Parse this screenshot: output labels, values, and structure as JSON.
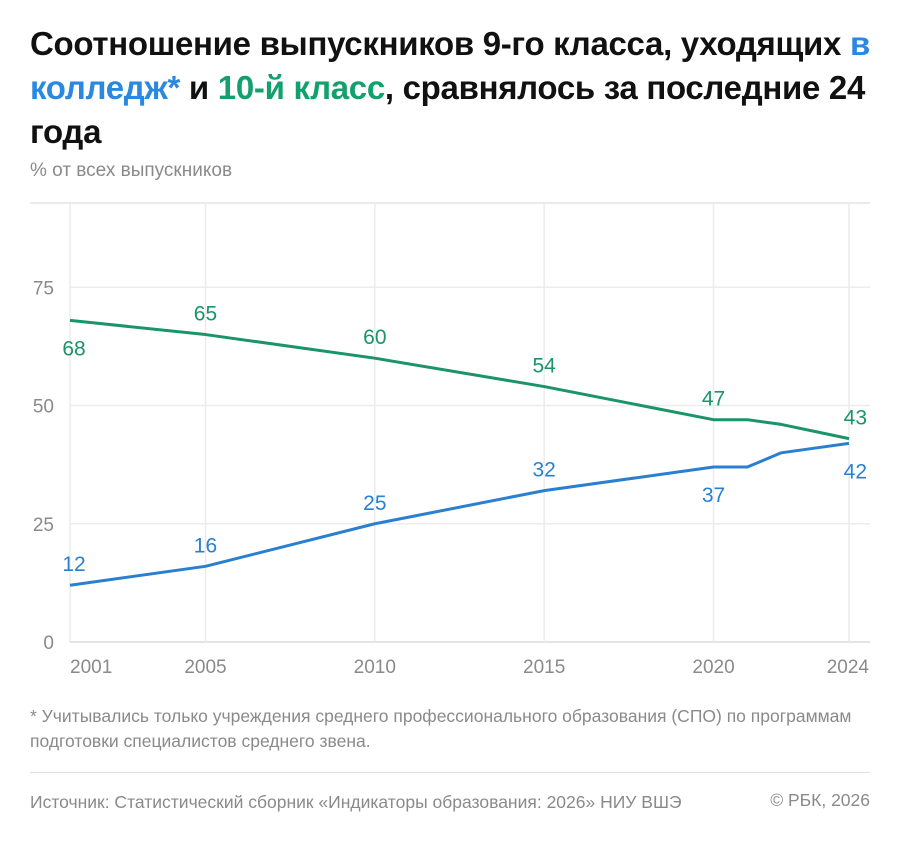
{
  "header": {
    "title_part1": "Соотношение выпускников 9-го класса, уходящих ",
    "title_blue": "в колледж*",
    "title_part2": " и ",
    "title_green": "10-й класс",
    "title_part3": ", сравнялось за последние 24 года",
    "subtitle": "% от всех выпускников"
  },
  "chart_data": {
    "type": "line",
    "title": "Соотношение выпускников 9-го класса, уходящих в колледж* и 10-й класс, сравнялось за последние 24 года",
    "ylabel": "% от всех выпускников",
    "xlim": [
      2001,
      2024
    ],
    "ylim": [
      0,
      92
    ],
    "x_ticks": [
      "2001",
      "2005",
      "2010",
      "2015",
      "2020",
      "2024"
    ],
    "y_ticks": [
      "0",
      "25",
      "50",
      "75"
    ],
    "grid": true,
    "legend": "none (series named by colored title words)",
    "series": [
      {
        "name": "10-й класс",
        "color": "#1a9468",
        "x": [
          2001,
          2005,
          2010,
          2015,
          2020,
          2021,
          2022,
          2023,
          2024
        ],
        "y": [
          68,
          65,
          60,
          54,
          47,
          47,
          46,
          44.5,
          43
        ],
        "labels": [
          {
            "x": 2001,
            "text": "68",
            "pos": "below"
          },
          {
            "x": 2005,
            "text": "65",
            "pos": "above"
          },
          {
            "x": 2010,
            "text": "60",
            "pos": "above"
          },
          {
            "x": 2015,
            "text": "54",
            "pos": "above"
          },
          {
            "x": 2020,
            "text": "47",
            "pos": "above"
          },
          {
            "x": 2024,
            "text": "43",
            "pos": "above"
          }
        ]
      },
      {
        "name": "в колледж*",
        "color": "#2a7fd0",
        "x": [
          2001,
          2005,
          2010,
          2015,
          2020,
          2021,
          2022,
          2023,
          2024
        ],
        "y": [
          12,
          16,
          25,
          32,
          37,
          37,
          40,
          41,
          42
        ],
        "labels": [
          {
            "x": 2001,
            "text": "12",
            "pos": "above"
          },
          {
            "x": 2005,
            "text": "16",
            "pos": "above"
          },
          {
            "x": 2010,
            "text": "25",
            "pos": "above"
          },
          {
            "x": 2015,
            "text": "32",
            "pos": "above"
          },
          {
            "x": 2020,
            "text": "37",
            "pos": "below"
          },
          {
            "x": 2024,
            "text": "42",
            "pos": "below"
          }
        ]
      }
    ]
  },
  "footer": {
    "note": "* Учитывались только учреждения среднего профессионального образования (СПО) по программам подготовки специалистов среднего звена.",
    "source": "Источник: Статистический сборник «Индикаторы образования: 2026» НИУ ВШЭ",
    "copyright": "© РБК, 2026"
  }
}
